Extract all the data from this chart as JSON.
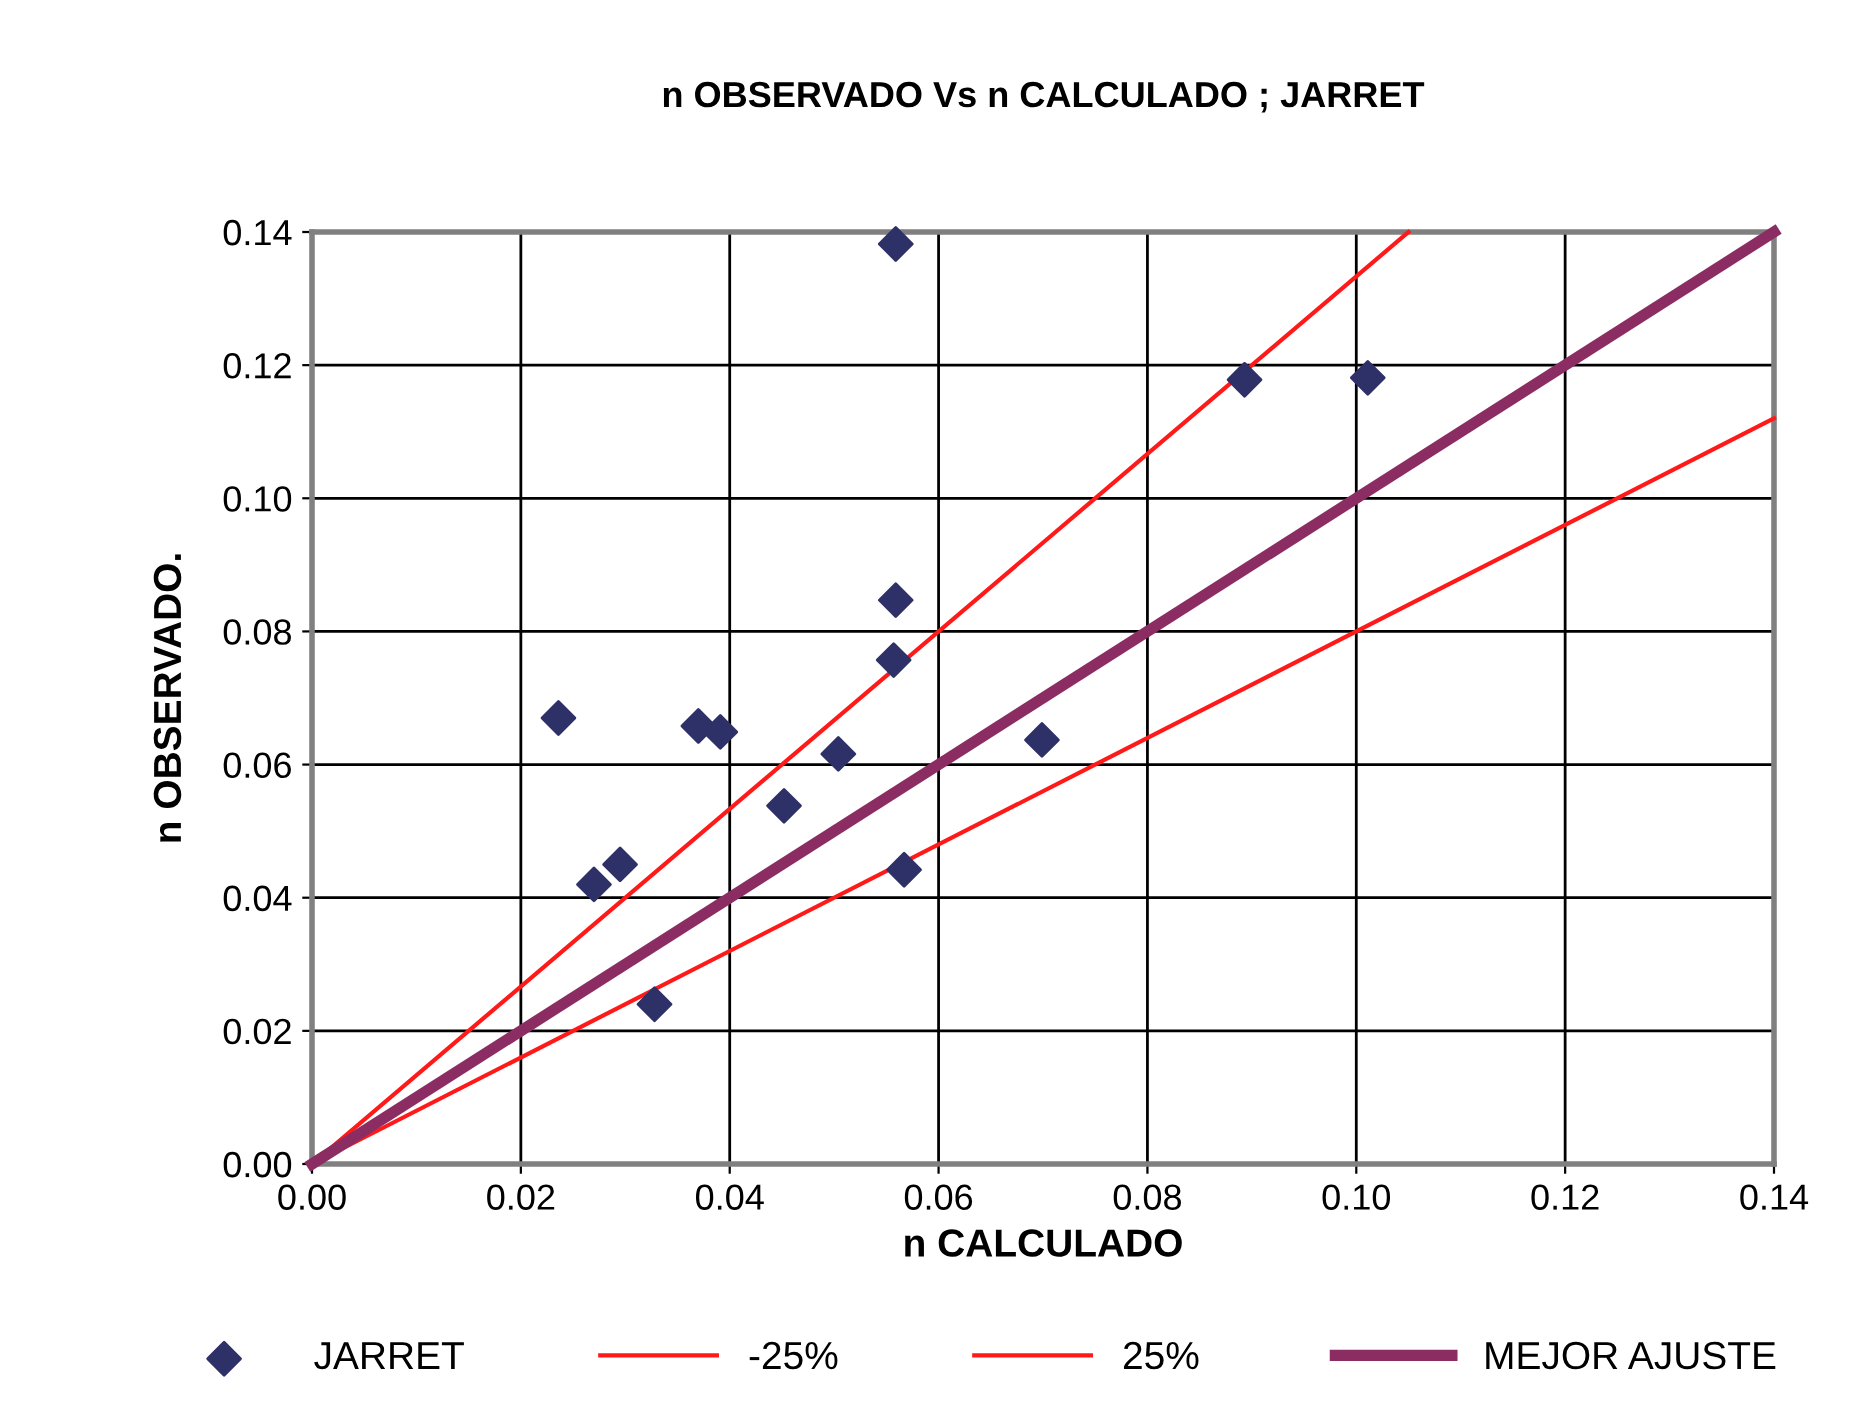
{
  "chart_data": {
    "type": "scatter",
    "title": "n OBSERVADO Vs n CALCULADO ; JARRET",
    "xlabel": "n CALCULADO",
    "ylabel": "n OBSERVADO.",
    "xlim": [
      0,
      0.14
    ],
    "ylim": [
      0,
      0.14
    ],
    "xticks": [
      {
        "value": 0,
        "label": "0.00"
      },
      {
        "value": 0.02,
        "label": "0.02"
      },
      {
        "value": 0.04,
        "label": "0.04"
      },
      {
        "value": 0.06,
        "label": "0.06"
      },
      {
        "value": 0.08,
        "label": "0.08"
      },
      {
        "value": 0.1,
        "label": "0.10"
      },
      {
        "value": 0.12,
        "label": "0.12"
      },
      {
        "value": 0.14,
        "label": "0.14"
      }
    ],
    "yticks": [
      {
        "value": 0,
        "label": "0.00"
      },
      {
        "value": 0.02,
        "label": "0.02"
      },
      {
        "value": 0.04,
        "label": "0.04"
      },
      {
        "value": 0.06,
        "label": "0.06"
      },
      {
        "value": 0.08,
        "label": "0.08"
      },
      {
        "value": 0.1,
        "label": "0.10"
      },
      {
        "value": 0.12,
        "label": "0.12"
      },
      {
        "value": 0.14,
        "label": "0.14"
      }
    ],
    "grid": true,
    "legend": "bottom",
    "series": [
      {
        "name": "JARRET",
        "marker": "diamond",
        "color": "#2e3068",
        "x": [
          0.0236,
          0.027,
          0.0295,
          0.0328,
          0.037,
          0.0391,
          0.0452,
          0.0504,
          0.0557,
          0.0559,
          0.0559,
          0.0567,
          0.0699,
          0.0893,
          0.1011
        ],
        "values": [
          0.067,
          0.042,
          0.045,
          0.024,
          0.0658,
          0.0649,
          0.0538,
          0.0616,
          0.0757,
          0.0847,
          0.1382,
          0.0442,
          0.0637,
          0.1178,
          0.1181
        ]
      },
      {
        "name": "-25%",
        "type": "line",
        "color": "#ff1a1a",
        "x": [
          0,
          0.14
        ],
        "values": [
          0,
          0.112
        ]
      },
      {
        "name": "25%",
        "type": "line",
        "color": "#ff1a1a",
        "x": [
          0,
          0.105
        ],
        "values": [
          0,
          0.14
        ]
      },
      {
        "name": "MEJOR AJUSTE",
        "type": "line",
        "color": "#8b2d62",
        "x": [
          0,
          0.14
        ],
        "values": [
          0,
          0.14
        ]
      }
    ]
  }
}
